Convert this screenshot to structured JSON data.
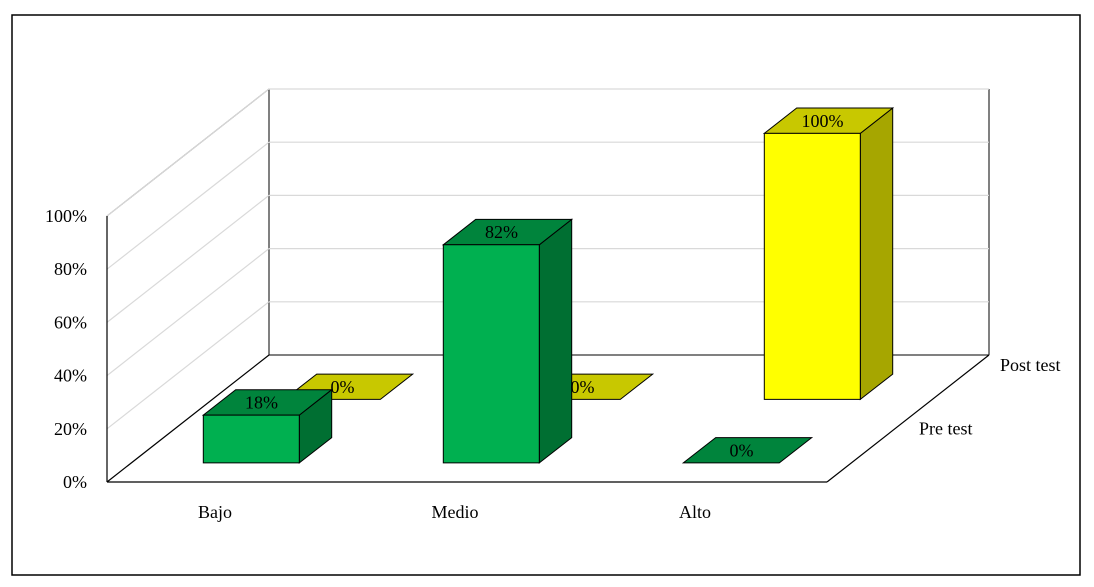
{
  "chart_data": {
    "type": "bar",
    "style": "3d-clustered-depth",
    "categories": [
      "Bajo",
      "Medio",
      "Alto"
    ],
    "series": [
      {
        "name": "Pre test",
        "values": [
          18,
          82,
          0
        ],
        "labels": [
          "18%",
          "82%",
          "0%"
        ]
      },
      {
        "name": "Post test",
        "values": [
          0,
          0,
          100
        ],
        "labels": [
          "0%",
          "0%",
          "100%"
        ]
      }
    ],
    "yticks": [
      "0%",
      "20%",
      "40%",
      "60%",
      "80%",
      "100%"
    ],
    "ylim": [
      0,
      100
    ],
    "grid": true,
    "legend": "none",
    "colors": {
      "pre_front": "#00b050",
      "pre_top": "#00843c",
      "pre_side": "#006f32",
      "post_front": "#ffff00",
      "post_top": "#c8c800",
      "post_side": "#a6a600",
      "gridline": "#d9d9d9",
      "axis": "#000000"
    }
  }
}
